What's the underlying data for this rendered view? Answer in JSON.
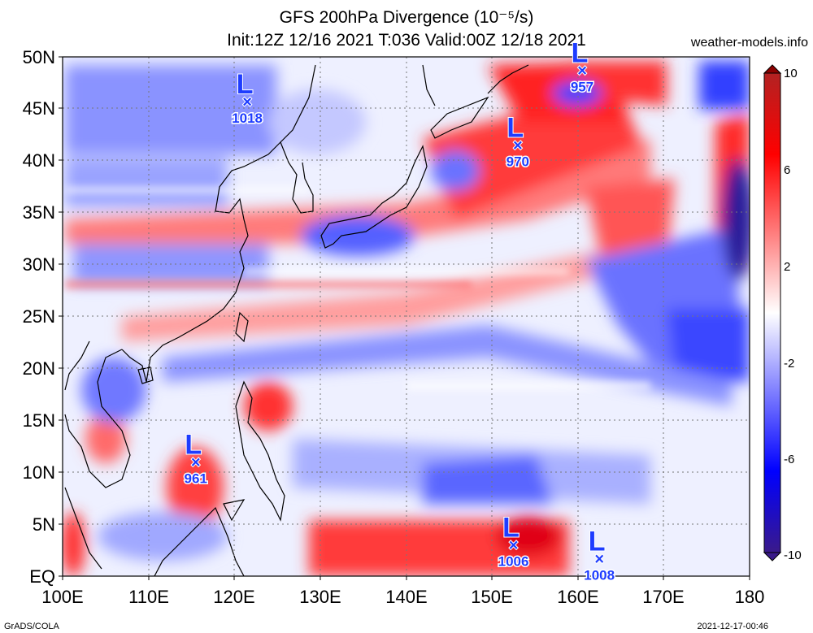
{
  "title_line1": "GFS 200hPa Divergence (10⁻⁵/s)",
  "title_line2": "Init:12Z 12/16 2021 T:036 Valid:00Z 12/18 2021",
  "site": "weather-models.info",
  "footer_left": "GrADS/COLA",
  "footer_right": "2021-12-17-00:46",
  "lat_labels": [
    "50N",
    "45N",
    "40N",
    "35N",
    "30N",
    "25N",
    "20N",
    "15N",
    "10N",
    "5N",
    "EQ"
  ],
  "lon_labels": [
    "100E",
    "110E",
    "120E",
    "130E",
    "140E",
    "150E",
    "160E",
    "170E",
    "180"
  ],
  "colorbar": {
    "labels": [
      "10",
      "6",
      "2",
      "-2",
      "-6",
      "-10"
    ],
    "colors": [
      "#c0392b",
      "#ff0000",
      "#ff9090",
      "#ffffff",
      "#9090ff",
      "#0000ff",
      "#3a1a8a"
    ]
  },
  "lows": [
    {
      "letter": "L",
      "value": "1018",
      "lon": 121.5,
      "lat": 45.7
    },
    {
      "letter": "L",
      "value": "970",
      "lon": 153.0,
      "lat": 41.5
    },
    {
      "letter": "L",
      "value": "957",
      "lon": 160.5,
      "lat": 48.7
    },
    {
      "letter": "L",
      "value": "961",
      "lon": 115.5,
      "lat": 11.0
    },
    {
      "letter": "L",
      "value": "1006",
      "lon": 152.5,
      "lat": 3.0
    },
    {
      "letter": "L",
      "value": "1008",
      "lon": 162.5,
      "lat": 1.7
    }
  ],
  "field_colors": {
    "strong_pos": "#e8001c",
    "pos": "#ff8080",
    "neutral": "#f4f4ff",
    "neg": "#7f7fff",
    "strong_neg": "#1a2ad6"
  }
}
